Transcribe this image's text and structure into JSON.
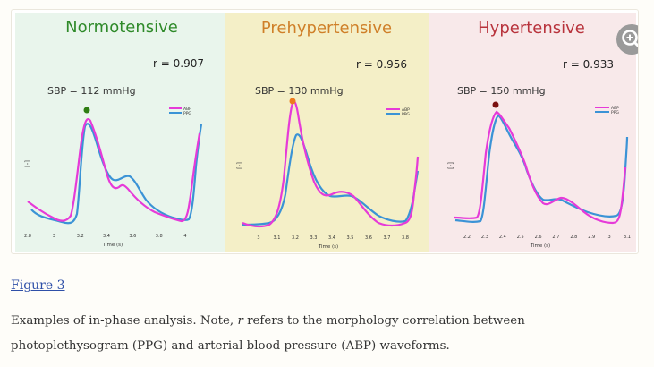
{
  "panels": [
    {
      "title": "Normotensive",
      "title_color": "#2f8a2a",
      "bg_color": "#e9f5ec",
      "r_label": "r = 0.907",
      "sbp_label": "SBP = 112 mmHg",
      "marker_color": "#2e7d12",
      "ylabel": "[-]",
      "xlabel": "Time (s)",
      "x_ticks": [
        "2.8",
        "3",
        "3.2",
        "3.4",
        "3.6",
        "3.8",
        "4"
      ],
      "legend": [
        "ABP",
        "PPG"
      ]
    },
    {
      "title": "Prehypertensive",
      "title_color": "#cf7f28",
      "bg_color": "#f4efc7",
      "r_label": "r = 0.956",
      "sbp_label": "SBP = 130 mmHg",
      "marker_color": "#ee7b1c",
      "ylabel": "[-]",
      "xlabel": "Time (s)",
      "x_ticks": [
        "3",
        "3.1",
        "3.2",
        "3.3",
        "3.4",
        "3.5",
        "3.6",
        "3.7",
        "3.8"
      ],
      "legend": [
        "ABP",
        "PPG"
      ]
    },
    {
      "title": "Hypertensive",
      "title_color": "#b8333c",
      "bg_color": "#f8e9ea",
      "r_label": "r = 0.933",
      "sbp_label": "SBP = 150 mmHg",
      "marker_color": "#7a1010",
      "ylabel": "[-]",
      "xlabel": "Time (s)",
      "x_ticks": [
        "2.2",
        "2.3",
        "2.4",
        "2.5",
        "2.6",
        "2.7",
        "2.8",
        "2.9",
        "3",
        "3.1"
      ],
      "legend": [
        "ABP",
        "PPG"
      ]
    }
  ],
  "colors": {
    "abp": "#e63ad8",
    "ppg": "#3b93d6"
  },
  "zoom_icon": "zoom-in-icon",
  "figure_link": "Figure 3",
  "caption": {
    "part1": "Examples of in-phase analysis. Note, ",
    "r": "r",
    "part2": " refers to the morphology correlation between photoplethysogram (PPG) and arterial blood pressure (ABP) waveforms."
  }
}
